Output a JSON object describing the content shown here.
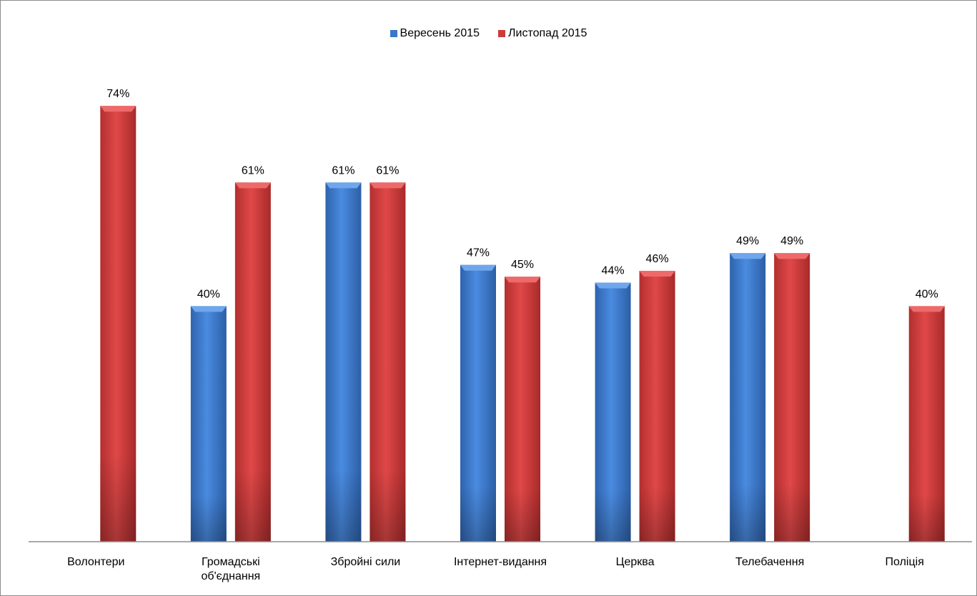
{
  "chart_data": {
    "type": "bar",
    "title": "",
    "xlabel": "",
    "ylabel": "",
    "ylim": [
      0,
      80
    ],
    "grid": false,
    "legend_position": "top-center",
    "categories": [
      [
        "Волонтери"
      ],
      [
        "Громадські",
        "об'єднання"
      ],
      [
        "Збройні сили"
      ],
      [
        "Інтернет-видання"
      ],
      [
        "Церква"
      ],
      [
        "Телебачення"
      ],
      [
        "Поліція"
      ]
    ],
    "series": [
      {
        "name": "Вересень 2015",
        "color": "#3a76c9",
        "values": [
          null,
          40,
          61,
          47,
          44,
          49,
          null
        ],
        "labels": [
          "",
          "40%",
          "61%",
          "47%",
          "44%",
          "49%",
          ""
        ]
      },
      {
        "name": "Листопад 2015",
        "color": "#cc3b3b",
        "values": [
          74,
          61,
          61,
          45,
          46,
          49,
          40
        ],
        "labels": [
          "74%",
          "61%",
          "61%",
          "45%",
          "46%",
          "49%",
          "40%"
        ]
      }
    ]
  }
}
